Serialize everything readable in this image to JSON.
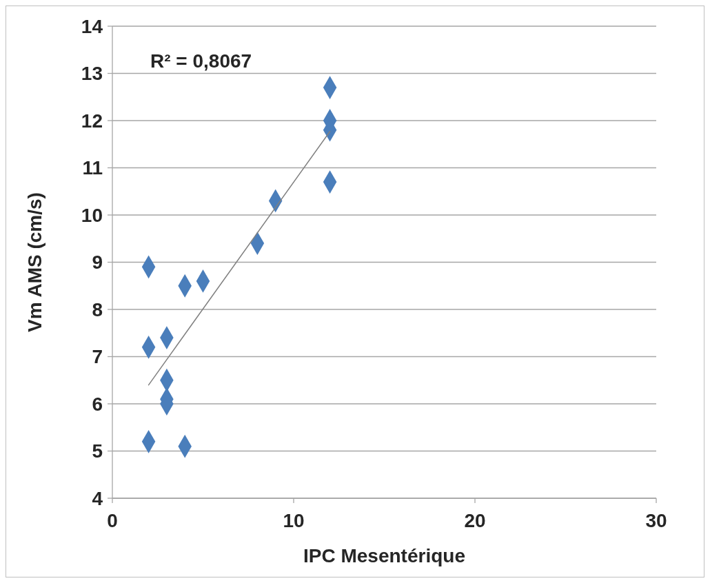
{
  "chart_data": {
    "type": "scatter",
    "xlabel": "IPC Mesentérique",
    "ylabel": "Vm AMS (cm/s)",
    "annotations": [
      "R² = 0,8067"
    ],
    "xlim": [
      0,
      30
    ],
    "xticks": [
      0,
      10,
      20,
      30
    ],
    "ylim": [
      4,
      14
    ],
    "yticks": [
      4,
      5,
      6,
      7,
      8,
      9,
      10,
      11,
      12,
      13,
      14
    ],
    "grid": "y",
    "marker": "diamond",
    "series": [
      {
        "color": "#4a7ebb",
        "x": [
          2,
          2,
          2,
          3,
          3,
          3,
          3,
          4,
          4,
          5,
          8,
          9,
          12,
          12,
          12,
          12
        ],
        "values": [
          8.9,
          7.2,
          5.2,
          7.4,
          6.5,
          6.1,
          6.0,
          8.5,
          5.1,
          8.6,
          9.4,
          10.3,
          12.7,
          12.0,
          11.8,
          10.7
        ]
      },
      {
        "type": "line",
        "color": "#808080",
        "x": [
          2,
          12
        ],
        "values": [
          6.4,
          11.77
        ],
        "marker": "none",
        "line_style": "solid"
      }
    ]
  }
}
